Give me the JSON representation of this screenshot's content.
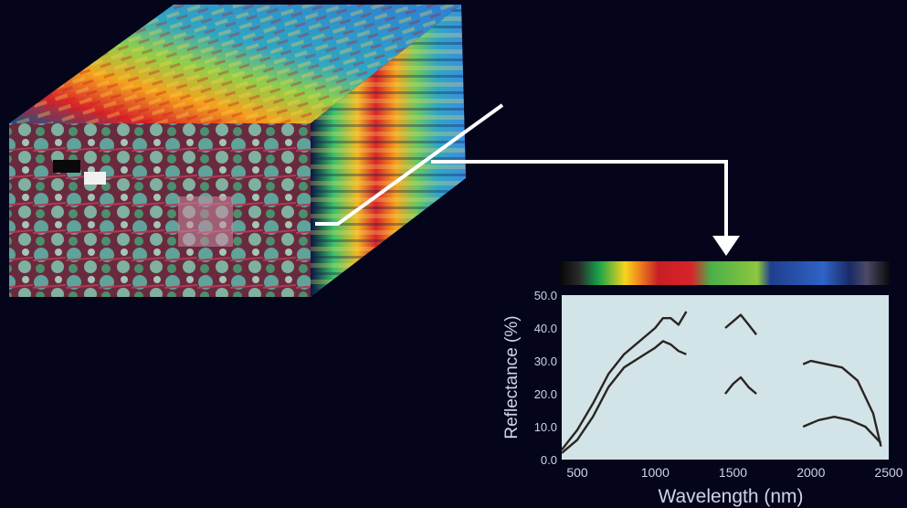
{
  "chart_data": {
    "type": "line",
    "xlabel": "Wavelength (nm)",
    "ylabel": "Reflectance (%)",
    "x_ticks": [
      "500",
      "1000",
      "1500",
      "2000",
      "2500"
    ],
    "y_ticks": [
      "0.0",
      "10.0",
      "20.0",
      "30.0",
      "40.0",
      "50.0"
    ],
    "xlim": [
      400,
      2500
    ],
    "ylim": [
      0,
      50
    ],
    "grid": false,
    "series": [
      {
        "segments": [
          [
            [
              400,
              3
            ],
            [
              500,
              9
            ],
            [
              600,
              17
            ],
            [
              700,
              26
            ],
            [
              800,
              32
            ],
            [
              900,
              36
            ],
            [
              1000,
              40
            ],
            [
              1050,
              43
            ],
            [
              1100,
              43
            ],
            [
              1150,
              41
            ],
            [
              1200,
              45
            ]
          ],
          [
            [
              1450,
              40
            ],
            [
              1500,
              42
            ],
            [
              1550,
              44
            ],
            [
              1600,
              41
            ],
            [
              1650,
              38
            ]
          ],
          [
            [
              1950,
              29
            ],
            [
              2000,
              30
            ],
            [
              2100,
              29
            ],
            [
              2200,
              28
            ],
            [
              2300,
              24
            ],
            [
              2400,
              14
            ],
            [
              2450,
              4
            ]
          ]
        ]
      },
      {
        "segments": [
          [
            [
              400,
              2
            ],
            [
              500,
              6
            ],
            [
              600,
              13
            ],
            [
              700,
              22
            ],
            [
              800,
              28
            ],
            [
              900,
              31
            ],
            [
              1000,
              34
            ],
            [
              1050,
              36
            ],
            [
              1100,
              35
            ],
            [
              1150,
              33
            ],
            [
              1200,
              32
            ]
          ],
          [
            [
              1450,
              20
            ],
            [
              1500,
              23
            ],
            [
              1550,
              25
            ],
            [
              1600,
              22
            ],
            [
              1650,
              20
            ]
          ],
          [
            [
              1950,
              10
            ],
            [
              2050,
              12
            ],
            [
              2150,
              13
            ],
            [
              2250,
              12
            ],
            [
              2350,
              10
            ],
            [
              2450,
              5
            ]
          ]
        ]
      }
    ]
  }
}
